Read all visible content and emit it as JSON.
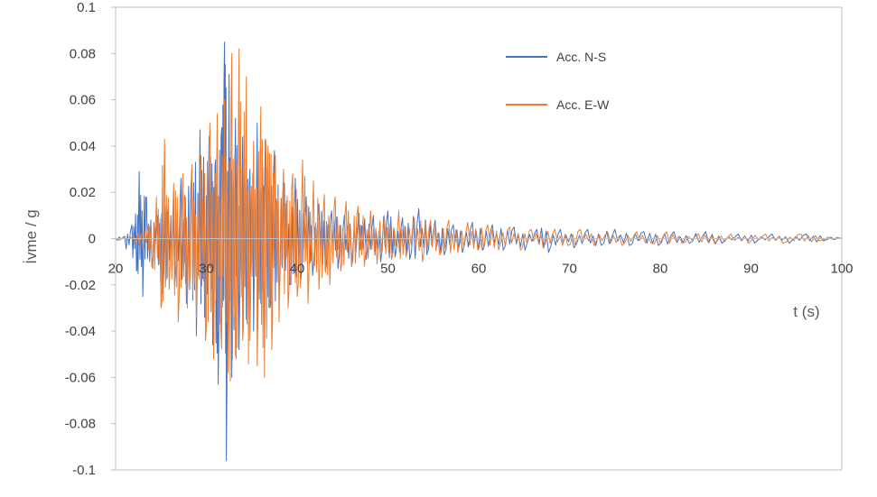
{
  "chart_data": {
    "type": "line",
    "title": "",
    "xlabel": "t (s)",
    "ylabel": "İvme / g",
    "xlim": [
      20,
      100
    ],
    "ylim": [
      -0.1,
      0.1
    ],
    "x_ticks": [
      "20",
      "30",
      "40",
      "50",
      "60",
      "70",
      "80",
      "90",
      "100"
    ],
    "y_ticks": [
      "0.1",
      "0.08",
      "0.06",
      "0.04",
      "0.02",
      "0",
      "-0.02",
      "-0.04",
      "-0.06",
      "-0.08",
      "-0.1"
    ],
    "grid": false,
    "legend_position": "top-right",
    "series": [
      {
        "name": "Acc. N-S",
        "color": "#4472C4",
        "peaks": [
          {
            "t": 20.0,
            "a": 0.0
          },
          {
            "t": 21.0,
            "a": 0.001
          },
          {
            "t": 21.8,
            "a": 0.006
          },
          {
            "t": 22.3,
            "a": -0.014
          },
          {
            "t": 22.6,
            "a": 0.029
          },
          {
            "t": 23.0,
            "a": -0.025
          },
          {
            "t": 23.4,
            "a": 0.018
          },
          {
            "t": 24.0,
            "a": -0.012
          },
          {
            "t": 24.6,
            "a": 0.01
          },
          {
            "t": 25.2,
            "a": -0.024
          },
          {
            "t": 25.8,
            "a": 0.014
          },
          {
            "t": 26.5,
            "a": -0.02
          },
          {
            "t": 27.2,
            "a": 0.026
          },
          {
            "t": 27.8,
            "a": -0.028
          },
          {
            "t": 28.4,
            "a": 0.03
          },
          {
            "t": 28.9,
            "a": -0.042
          },
          {
            "t": 29.3,
            "a": 0.047
          },
          {
            "t": 29.8,
            "a": -0.034
          },
          {
            "t": 30.3,
            "a": 0.044
          },
          {
            "t": 30.7,
            "a": -0.046
          },
          {
            "t": 31.0,
            "a": 0.034
          },
          {
            "t": 31.3,
            "a": -0.063
          },
          {
            "t": 31.7,
            "a": 0.048
          },
          {
            "t": 32.0,
            "a": 0.085
          },
          {
            "t": 32.2,
            "a": -0.096
          },
          {
            "t": 32.5,
            "a": 0.071
          },
          {
            "t": 32.8,
            "a": -0.06
          },
          {
            "t": 33.2,
            "a": 0.052
          },
          {
            "t": 33.6,
            "a": -0.048
          },
          {
            "t": 34.0,
            "a": 0.044
          },
          {
            "t": 34.4,
            "a": -0.035
          },
          {
            "t": 34.8,
            "a": 0.03
          },
          {
            "t": 35.2,
            "a": -0.04
          },
          {
            "t": 35.6,
            "a": 0.05
          },
          {
            "t": 36.0,
            "a": -0.028
          },
          {
            "t": 36.5,
            "a": 0.043
          },
          {
            "t": 37.0,
            "a": -0.03
          },
          {
            "t": 37.5,
            "a": 0.038
          },
          {
            "t": 38.0,
            "a": -0.022
          },
          {
            "t": 38.6,
            "a": 0.024
          },
          {
            "t": 39.2,
            "a": -0.02
          },
          {
            "t": 39.8,
            "a": 0.026
          },
          {
            "t": 40.4,
            "a": -0.018
          },
          {
            "t": 41.0,
            "a": 0.018
          },
          {
            "t": 41.7,
            "a": -0.016
          },
          {
            "t": 42.4,
            "a": 0.015
          },
          {
            "t": 43.1,
            "a": -0.014
          },
          {
            "t": 43.8,
            "a": 0.012
          },
          {
            "t": 44.5,
            "a": -0.013
          },
          {
            "t": 45.2,
            "a": 0.01
          },
          {
            "t": 46.0,
            "a": -0.012
          },
          {
            "t": 46.8,
            "a": 0.011
          },
          {
            "t": 47.6,
            "a": -0.009
          },
          {
            "t": 48.4,
            "a": 0.01
          },
          {
            "t": 49.2,
            "a": -0.01
          },
          {
            "t": 50.0,
            "a": 0.012
          },
          {
            "t": 50.8,
            "a": -0.008
          },
          {
            "t": 51.6,
            "a": 0.009
          },
          {
            "t": 52.4,
            "a": -0.009
          },
          {
            "t": 53.4,
            "a": 0.013
          },
          {
            "t": 54.3,
            "a": -0.007
          },
          {
            "t": 55.2,
            "a": 0.008
          },
          {
            "t": 56.2,
            "a": -0.007
          },
          {
            "t": 57.2,
            "a": 0.006
          },
          {
            "t": 58.2,
            "a": -0.006
          },
          {
            "t": 59.3,
            "a": 0.007
          },
          {
            "t": 60.4,
            "a": -0.005
          },
          {
            "t": 61.5,
            "a": 0.006
          },
          {
            "t": 62.7,
            "a": -0.005
          },
          {
            "t": 63.9,
            "a": 0.005
          },
          {
            "t": 65.1,
            "a": -0.005
          },
          {
            "t": 66.4,
            "a": 0.004
          },
          {
            "t": 67.7,
            "a": -0.006
          },
          {
            "t": 69.0,
            "a": 0.004
          },
          {
            "t": 70.5,
            "a": -0.004
          },
          {
            "t": 72.0,
            "a": 0.004
          },
          {
            "t": 73.5,
            "a": -0.003
          },
          {
            "t": 75.0,
            "a": 0.004
          },
          {
            "t": 76.6,
            "a": -0.003
          },
          {
            "t": 78.2,
            "a": 0.003
          },
          {
            "t": 79.8,
            "a": -0.003
          },
          {
            "t": 81.5,
            "a": 0.003
          },
          {
            "t": 83.2,
            "a": -0.002
          },
          {
            "t": 85.0,
            "a": 0.003
          },
          {
            "t": 86.8,
            "a": -0.002
          },
          {
            "t": 88.6,
            "a": 0.002
          },
          {
            "t": 90.4,
            "a": -0.002
          },
          {
            "t": 92.3,
            "a": 0.002
          },
          {
            "t": 94.2,
            "a": -0.002
          },
          {
            "t": 96.1,
            "a": 0.002
          },
          {
            "t": 98.0,
            "a": -0.001
          },
          {
            "t": 100.0,
            "a": 0.0
          }
        ]
      },
      {
        "name": "Acc. E-W",
        "color": "#ED7D31",
        "peaks": [
          {
            "t": 20.0,
            "a": 0.0
          },
          {
            "t": 22.0,
            "a": 0.001
          },
          {
            "t": 23.0,
            "a": -0.004
          },
          {
            "t": 23.6,
            "a": 0.006
          },
          {
            "t": 24.0,
            "a": -0.012
          },
          {
            "t": 24.5,
            "a": 0.018
          },
          {
            "t": 25.0,
            "a": -0.03
          },
          {
            "t": 25.4,
            "a": 0.043
          },
          {
            "t": 25.9,
            "a": -0.022
          },
          {
            "t": 26.4,
            "a": 0.024
          },
          {
            "t": 26.9,
            "a": -0.036
          },
          {
            "t": 27.4,
            "a": 0.028
          },
          {
            "t": 27.9,
            "a": -0.03
          },
          {
            "t": 28.4,
            "a": 0.032
          },
          {
            "t": 28.9,
            "a": -0.034
          },
          {
            "t": 29.4,
            "a": 0.036
          },
          {
            "t": 29.9,
            "a": -0.044
          },
          {
            "t": 30.4,
            "a": 0.05
          },
          {
            "t": 30.8,
            "a": -0.052
          },
          {
            "t": 31.2,
            "a": 0.054
          },
          {
            "t": 31.6,
            "a": -0.04
          },
          {
            "t": 32.0,
            "a": 0.06
          },
          {
            "t": 32.4,
            "a": -0.058
          },
          {
            "t": 32.8,
            "a": 0.08
          },
          {
            "t": 33.2,
            "a": -0.05
          },
          {
            "t": 33.6,
            "a": 0.082
          },
          {
            "t": 34.0,
            "a": -0.044
          },
          {
            "t": 34.4,
            "a": 0.07
          },
          {
            "t": 34.8,
            "a": -0.044
          },
          {
            "t": 35.2,
            "a": 0.042
          },
          {
            "t": 35.6,
            "a": -0.055
          },
          {
            "t": 36.0,
            "a": 0.057
          },
          {
            "t": 36.4,
            "a": -0.06
          },
          {
            "t": 36.8,
            "a": 0.04
          },
          {
            "t": 37.2,
            "a": -0.048
          },
          {
            "t": 37.6,
            "a": 0.036
          },
          {
            "t": 38.0,
            "a": -0.036
          },
          {
            "t": 38.5,
            "a": 0.03
          },
          {
            "t": 39.0,
            "a": -0.03
          },
          {
            "t": 39.5,
            "a": 0.028
          },
          {
            "t": 40.0,
            "a": -0.025
          },
          {
            "t": 40.6,
            "a": 0.034
          },
          {
            "t": 41.2,
            "a": -0.028
          },
          {
            "t": 41.8,
            "a": 0.025
          },
          {
            "t": 42.4,
            "a": -0.022
          },
          {
            "t": 43.0,
            "a": 0.019
          },
          {
            "t": 43.6,
            "a": -0.02
          },
          {
            "t": 44.2,
            "a": 0.018
          },
          {
            "t": 44.8,
            "a": -0.014
          },
          {
            "t": 45.4,
            "a": 0.016
          },
          {
            "t": 46.0,
            "a": -0.012
          },
          {
            "t": 46.7,
            "a": 0.014
          },
          {
            "t": 47.4,
            "a": -0.012
          },
          {
            "t": 48.1,
            "a": 0.012
          },
          {
            "t": 48.8,
            "a": -0.011
          },
          {
            "t": 49.6,
            "a": 0.01
          },
          {
            "t": 50.4,
            "a": -0.009
          },
          {
            "t": 51.2,
            "a": 0.012
          },
          {
            "t": 52.0,
            "a": -0.008
          },
          {
            "t": 52.9,
            "a": 0.009
          },
          {
            "t": 53.8,
            "a": -0.01
          },
          {
            "t": 54.7,
            "a": 0.008
          },
          {
            "t": 55.7,
            "a": -0.007
          },
          {
            "t": 56.7,
            "a": 0.008
          },
          {
            "t": 57.7,
            "a": -0.006
          },
          {
            "t": 58.8,
            "a": 0.007
          },
          {
            "t": 59.9,
            "a": -0.005
          },
          {
            "t": 61.0,
            "a": 0.006
          },
          {
            "t": 62.2,
            "a": -0.005
          },
          {
            "t": 63.4,
            "a": 0.005
          },
          {
            "t": 64.6,
            "a": -0.005
          },
          {
            "t": 65.8,
            "a": 0.004
          },
          {
            "t": 67.1,
            "a": -0.004
          },
          {
            "t": 68.4,
            "a": 0.004
          },
          {
            "t": 69.8,
            "a": -0.003
          },
          {
            "t": 71.2,
            "a": 0.004
          },
          {
            "t": 72.7,
            "a": -0.003
          },
          {
            "t": 74.2,
            "a": 0.003
          },
          {
            "t": 75.8,
            "a": -0.003
          },
          {
            "t": 77.4,
            "a": 0.003
          },
          {
            "t": 79.0,
            "a": -0.002
          },
          {
            "t": 80.7,
            "a": 0.003
          },
          {
            "t": 82.4,
            "a": -0.002
          },
          {
            "t": 84.2,
            "a": 0.002
          },
          {
            "t": 86.0,
            "a": -0.002
          },
          {
            "t": 87.8,
            "a": 0.002
          },
          {
            "t": 89.7,
            "a": -0.002
          },
          {
            "t": 91.6,
            "a": 0.002
          },
          {
            "t": 93.5,
            "a": -0.002
          },
          {
            "t": 95.5,
            "a": 0.002
          },
          {
            "t": 97.5,
            "a": -0.001
          },
          {
            "t": 100.0,
            "a": 0.0
          }
        ]
      }
    ]
  }
}
